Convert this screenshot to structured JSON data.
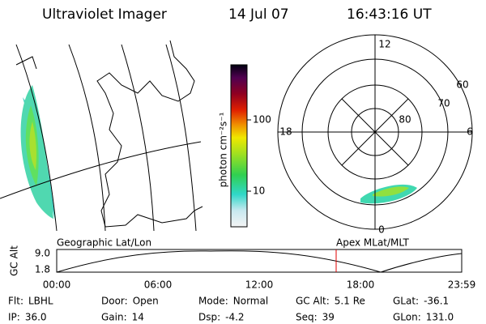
{
  "header": {
    "title": "Ultraviolet Imager",
    "date": "14 Jul 07",
    "time": "16:43:16 UT"
  },
  "colorbar": {
    "label": "photon cm⁻²s⁻¹",
    "ticks": [
      "100",
      "10"
    ]
  },
  "polar": {
    "mlt_labels": [
      "12",
      "18",
      "6",
      "0"
    ],
    "lat_labels": [
      "60",
      "70",
      "80"
    ]
  },
  "orbit": {
    "left_label": "Geographic Lat/Lon",
    "right_label": "Apex MLat/MLT",
    "y_label": "GC Alt",
    "yticks": [
      "9.0",
      "1.8"
    ],
    "xticks": [
      "00:00",
      "06:00",
      "12:00",
      "18:00",
      "23:59"
    ]
  },
  "footer": {
    "rows": [
      [
        {
          "label": "Flt:",
          "value": "LBHL"
        },
        {
          "label": "Door:",
          "value": "Open"
        },
        {
          "label": "Mode:",
          "value": "Normal"
        },
        {
          "label": "GC Alt:",
          "value": "5.1 Re"
        },
        {
          "label": "GLat:",
          "value": "-36.1"
        }
      ],
      [
        {
          "label": "IP:",
          "value": "36.0"
        },
        {
          "label": "Gain:",
          "value": "14"
        },
        {
          "label": "Dsp:",
          "value": "-4.2"
        },
        {
          "label": "Seq:",
          "value": "39"
        },
        {
          "label": "GLon:",
          "value": "131.0"
        }
      ]
    ]
  }
}
